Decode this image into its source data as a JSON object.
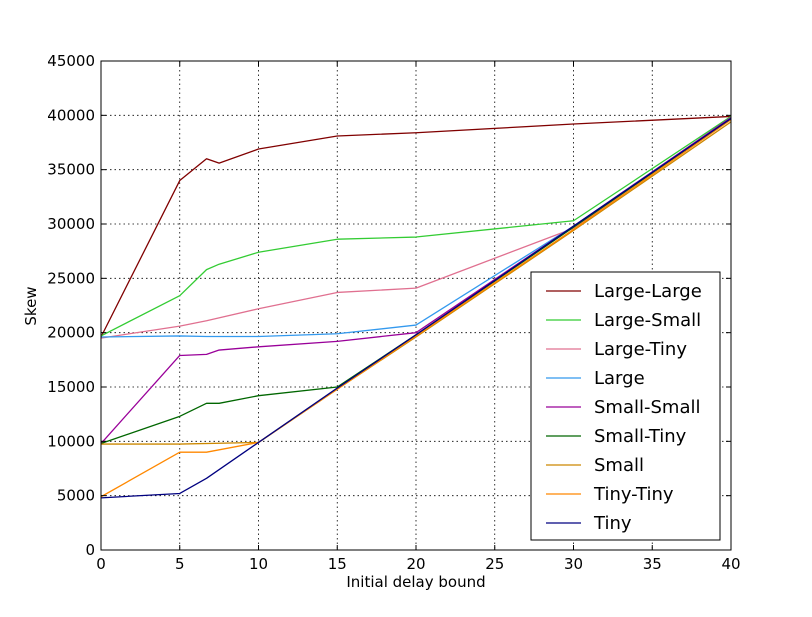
{
  "chart_data": {
    "type": "line",
    "title": "",
    "xlabel": "Initial delay bound",
    "ylabel": "Skew",
    "xlim": [
      0,
      40
    ],
    "ylim": [
      0,
      45000
    ],
    "xticks": [
      0,
      5,
      10,
      15,
      20,
      25,
      30,
      35,
      40
    ],
    "yticks": [
      0,
      5000,
      10000,
      15000,
      20000,
      25000,
      30000,
      35000,
      40000,
      45000
    ],
    "grid": true,
    "legend_position": "lower-right",
    "series": [
      {
        "name": "Large-Large",
        "color": "#800000",
        "x": [
          0,
          5,
          6.7,
          7.5,
          10,
          15,
          20,
          30,
          40
        ],
        "y": [
          19600,
          34000,
          36000,
          35600,
          36900,
          38100,
          38400,
          39200,
          39900
        ]
      },
      {
        "name": "Large-Small",
        "color": "#33cc33",
        "x": [
          0,
          5,
          6.7,
          7.5,
          10,
          15,
          20,
          30,
          40
        ],
        "y": [
          19700,
          23400,
          25800,
          26300,
          27400,
          28600,
          28800,
          30300,
          39900
        ]
      },
      {
        "name": "Large-Tiny",
        "color": "#e07090",
        "x": [
          0,
          5,
          6.7,
          10,
          15,
          20,
          30,
          40
        ],
        "y": [
          19500,
          20600,
          21100,
          22200,
          23700,
          24100,
          29600,
          39800
        ]
      },
      {
        "name": "Large",
        "color": "#3399ee",
        "x": [
          0,
          5,
          6.7,
          10,
          15,
          20,
          30,
          40
        ],
        "y": [
          19600,
          19700,
          19650,
          19650,
          19900,
          20700,
          29800,
          39800
        ]
      },
      {
        "name": "Small-Small",
        "color": "#990099",
        "x": [
          0,
          5,
          6.7,
          7.5,
          10,
          15,
          20,
          30,
          40
        ],
        "y": [
          9800,
          17900,
          18000,
          18400,
          18700,
          19200,
          20000,
          29800,
          39800
        ]
      },
      {
        "name": "Small-Tiny",
        "color": "#006600",
        "x": [
          0,
          5,
          6.7,
          7.5,
          10,
          15,
          20,
          30,
          40
        ],
        "y": [
          9800,
          12300,
          13500,
          13500,
          14200,
          15000,
          19800,
          29700,
          39700
        ]
      },
      {
        "name": "Small",
        "color": "#cc8800",
        "x": [
          0,
          5,
          10,
          15,
          20,
          30,
          40
        ],
        "y": [
          9750,
          9750,
          9900,
          14800,
          19600,
          29400,
          39400
        ]
      },
      {
        "name": "Tiny-Tiny",
        "color": "#ff8800",
        "x": [
          0,
          5,
          6.7,
          10,
          15,
          20,
          30,
          40
        ],
        "y": [
          4900,
          9000,
          9000,
          9900,
          14800,
          19700,
          29500,
          39600
        ]
      },
      {
        "name": "Tiny",
        "color": "#000080",
        "x": [
          0,
          5,
          6.7,
          10,
          15,
          20,
          30,
          40
        ],
        "y": [
          4800,
          5200,
          6600,
          9900,
          14900,
          19800,
          29800,
          39700
        ]
      }
    ]
  }
}
